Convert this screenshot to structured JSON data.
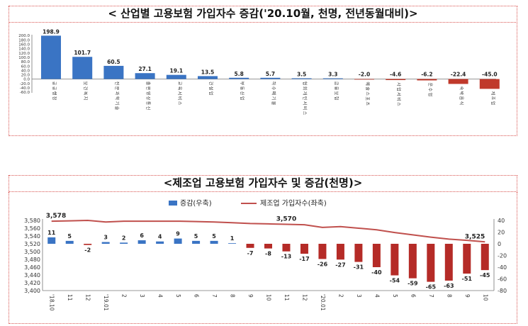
{
  "chart_data": [
    {
      "type": "bar",
      "title": "< 산업별 고용보험 가입자수 증감('20.10월, 천명, 전년동월대비)>",
      "categories": [
        "공공행정",
        "보건복지",
        "전문과학기술",
        "출판영상통신",
        "교육서비스",
        "건설업",
        "부동산업",
        "하수폐기물",
        "협회개인서비스",
        "금융보험",
        "예술스포츠",
        "사업서비스",
        "운수업",
        "숙박음식",
        "제조업"
      ],
      "values": [
        198.9,
        101.7,
        60.5,
        27.1,
        19.1,
        13.5,
        5.8,
        5.7,
        3.5,
        3.3,
        -2.0,
        -4.6,
        -6.2,
        -22.4,
        -45.0
      ],
      "value_labels": [
        "198.9",
        "101.7",
        "60.5",
        "27.1",
        "19.1",
        "13.5",
        "5.8",
        "5.7",
        "3.5",
        "3.3",
        "-2.0",
        "-4.6",
        "-6.2",
        "-22.4",
        "-45.0"
      ],
      "yticks": [
        "200.0",
        "180.0",
        "160.0",
        "140.0",
        "120.0",
        "100.0",
        "80.0",
        "60.0",
        "40.0",
        "20.0",
        "0.0",
        "-20.0",
        "-40.0",
        "-60.0"
      ],
      "ylim": [
        -60,
        200
      ],
      "colors": {
        "positive": "#3a74c4",
        "negative": "#c0392b"
      }
    },
    {
      "type": "bar+line",
      "title": "<제조업 고용보험 가입자수 및 증감(천명)>",
      "categories": [
        "'18.10",
        "11",
        "12",
        "'19.01",
        "2",
        "3",
        "4",
        "5",
        "6",
        "7",
        "8",
        "9",
        "10",
        "11",
        "12",
        "'20.01",
        "2",
        "3",
        "4",
        "5",
        "6",
        "7",
        "8",
        "9",
        "10"
      ],
      "bar_series": {
        "name": "증감(우축)",
        "values": [
          11,
          5,
          -2,
          3,
          2,
          6,
          4,
          9,
          5,
          5,
          1,
          -7,
          -8,
          -13,
          -17,
          -26,
          -27,
          -31,
          -40,
          -54,
          -59,
          -65,
          -63,
          -51,
          -45
        ],
        "value_labels": [
          "11",
          "5",
          "-2",
          "3",
          "2",
          "6",
          "4",
          "9",
          "5",
          "5",
          "1",
          "-7",
          "-8",
          "-13",
          "-17",
          "-26",
          "-27",
          "-31",
          "-40",
          "-54",
          "-59",
          "-65",
          "-63",
          "-51",
          "-45"
        ],
        "color_pos": "#3a74c4",
        "color_neg": "#b52b27"
      },
      "line_series": {
        "name": "제조업 가입자수(좌축)",
        "values": [
          3578,
          3579,
          3580,
          3576,
          3578,
          3578,
          3578,
          3578,
          3577,
          3576,
          3574,
          3572,
          3571,
          3570,
          3569,
          3562,
          3564,
          3560,
          3556,
          3549,
          3543,
          3537,
          3532,
          3529,
          3525
        ],
        "color": "#c0504d"
      },
      "line_labels": [
        {
          "index": 0,
          "text": "3,578"
        },
        {
          "index": 13,
          "text": "3,570"
        },
        {
          "index": 24,
          "text": "3,525"
        }
      ],
      "left_axis": {
        "ylim": [
          3400,
          3580
        ],
        "ticks": [
          "3,580",
          "3,560",
          "3,540",
          "3,520",
          "3,500",
          "3,480",
          "3,460",
          "3,440",
          "3,420",
          "3,400"
        ]
      },
      "right_axis": {
        "ylim": [
          -80,
          40
        ],
        "ticks": [
          "40",
          "20",
          "0",
          "-20",
          "-40",
          "-60",
          "-80"
        ]
      },
      "legend": [
        "증감(우축)",
        "제조업 가입자수(좌축)"
      ]
    }
  ]
}
